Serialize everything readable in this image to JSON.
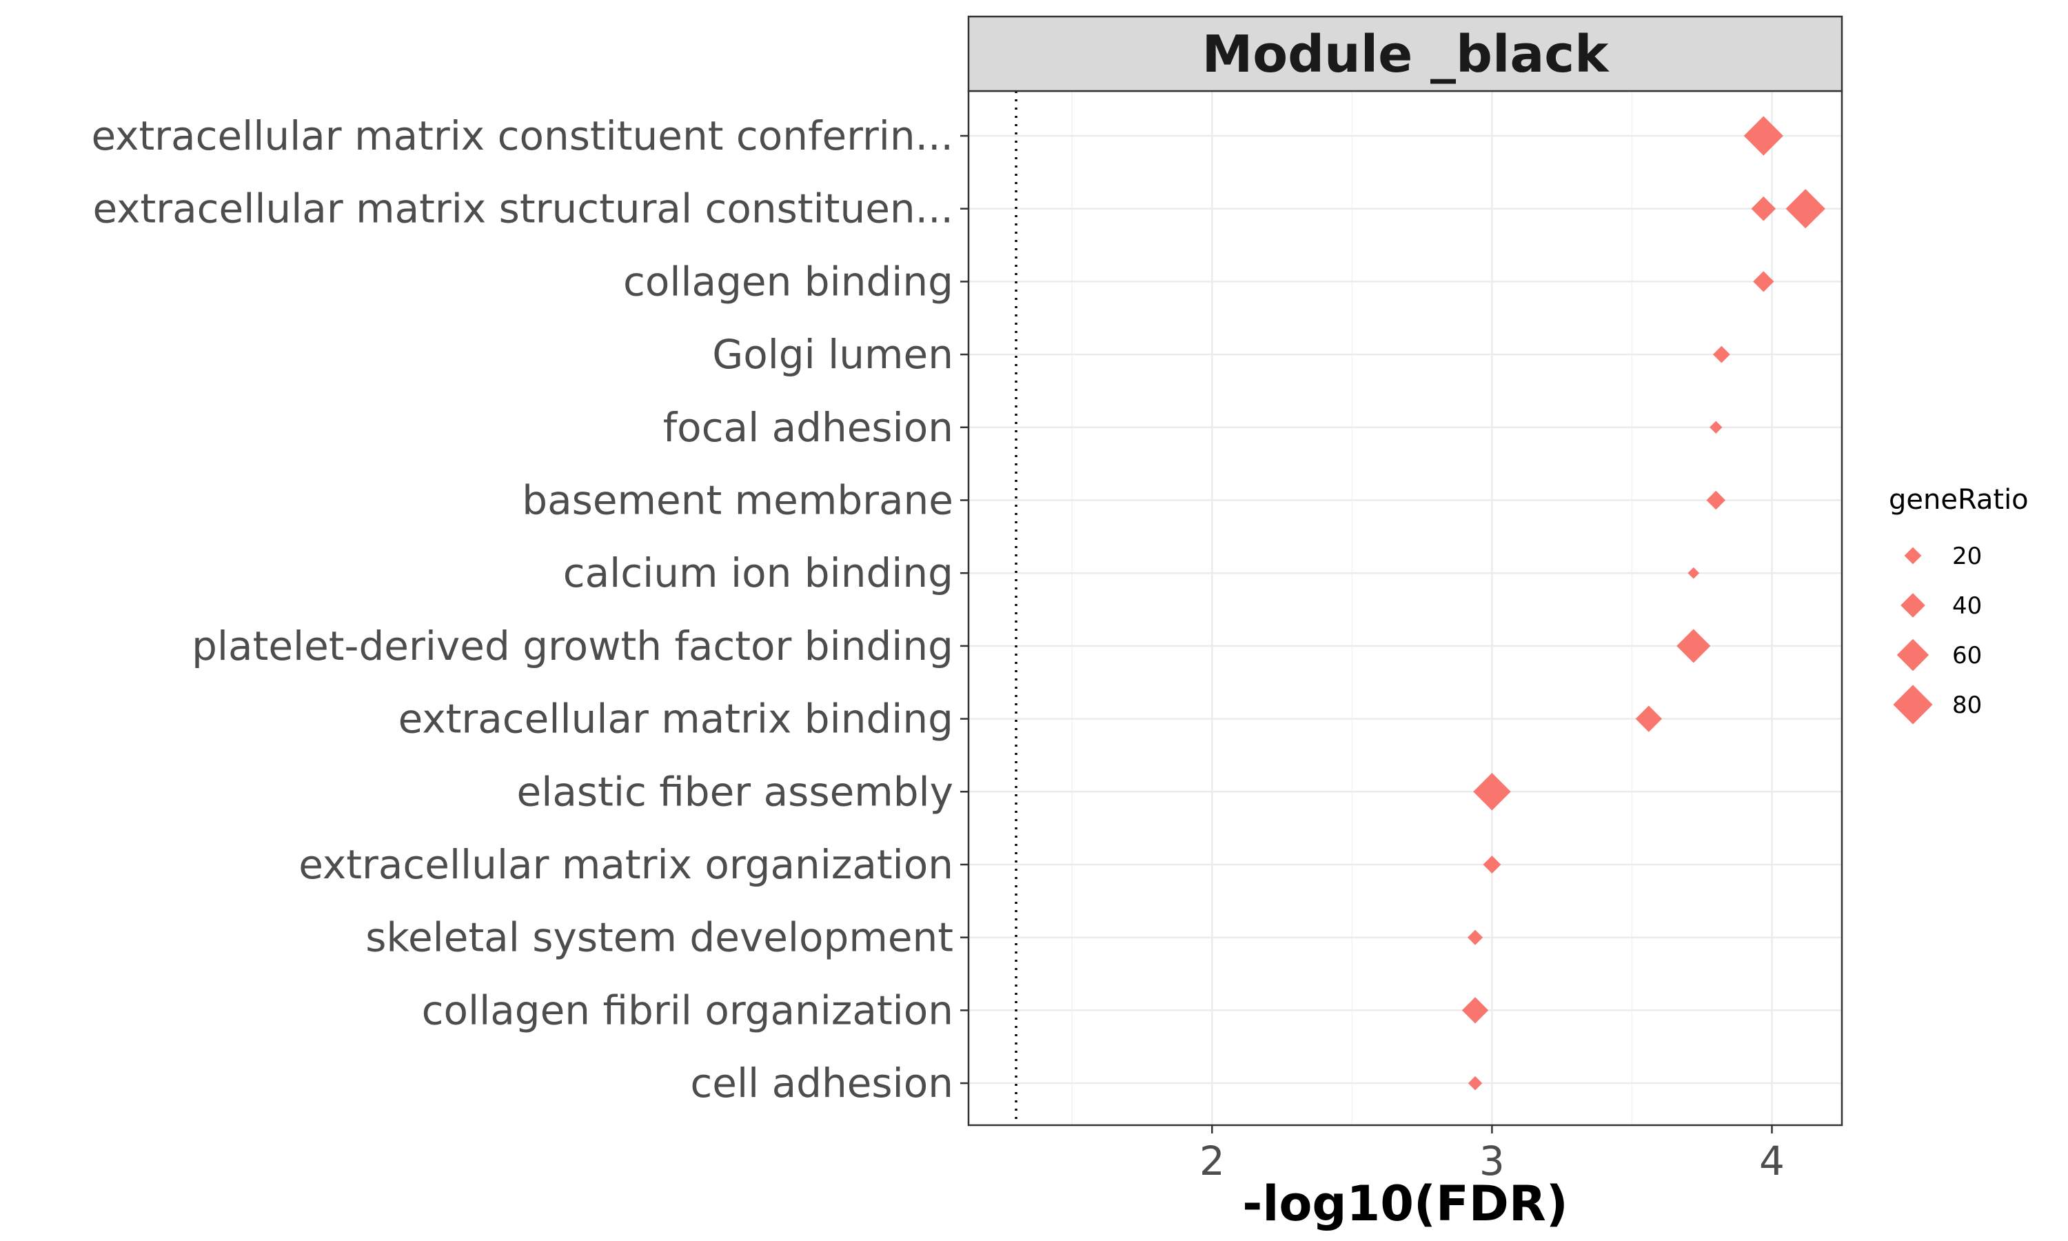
{
  "chart_data": {
    "type": "scatter",
    "facet_title": "Module _black",
    "xlabel": "-log10(FDR)",
    "ylabel": "",
    "xlim": [
      1.13,
      4.25
    ],
    "x_ticks": [
      2,
      3,
      4
    ],
    "x_tick_labels": [
      "2",
      "3",
      "4"
    ],
    "reference_line_x": 1.3,
    "reference_line_style": "dotted",
    "grid": true,
    "marker": "diamond",
    "color": "#F8766D",
    "categories": [
      "extracellular matrix constituent conferrin...",
      "extracellular matrix structural constituen...",
      "collagen binding",
      "Golgi lumen",
      "focal adhesion",
      "basement membrane",
      "calcium ion binding",
      "platelet-derived growth factor binding",
      "extracellular matrix binding",
      "elastic fiber assembly",
      "extracellular matrix organization",
      "skeletal system development",
      "collagen fibril organization",
      "cell adhesion"
    ],
    "points": [
      {
        "category": "extracellular matrix constituent conferrin...",
        "x": 3.97,
        "size": 80
      },
      {
        "category": "extracellular matrix structural constituen...",
        "x": 3.97,
        "size": 40
      },
      {
        "category": "extracellular matrix structural constituen...",
        "x": 4.12,
        "size": 80
      },
      {
        "category": "collagen binding",
        "x": 3.97,
        "size": 30
      },
      {
        "category": "Golgi lumen",
        "x": 3.82,
        "size": 20
      },
      {
        "category": "focal adhesion",
        "x": 3.8,
        "size": 8
      },
      {
        "category": "basement membrane",
        "x": 3.8,
        "size": 25
      },
      {
        "category": "calcium ion binding",
        "x": 3.72,
        "size": 5
      },
      {
        "category": "platelet-derived growth factor binding",
        "x": 3.72,
        "size": 65
      },
      {
        "category": "extracellular matrix binding",
        "x": 3.56,
        "size": 45
      },
      {
        "category": "elastic fiber assembly",
        "x": 3.0,
        "size": 75
      },
      {
        "category": "extracellular matrix organization",
        "x": 3.0,
        "size": 22
      },
      {
        "category": "skeletal system development",
        "x": 2.94,
        "size": 15
      },
      {
        "category": "collagen fibril organization",
        "x": 2.94,
        "size": 45
      },
      {
        "category": "cell adhesion",
        "x": 2.94,
        "size": 12
      }
    ],
    "legend": {
      "title": "geneRatio",
      "placement": "right",
      "entries": [
        {
          "label": "20",
          "size": 20
        },
        {
          "label": "40",
          "size": 40
        },
        {
          "label": "60",
          "size": 60
        },
        {
          "label": "80",
          "size": 80
        }
      ]
    }
  }
}
